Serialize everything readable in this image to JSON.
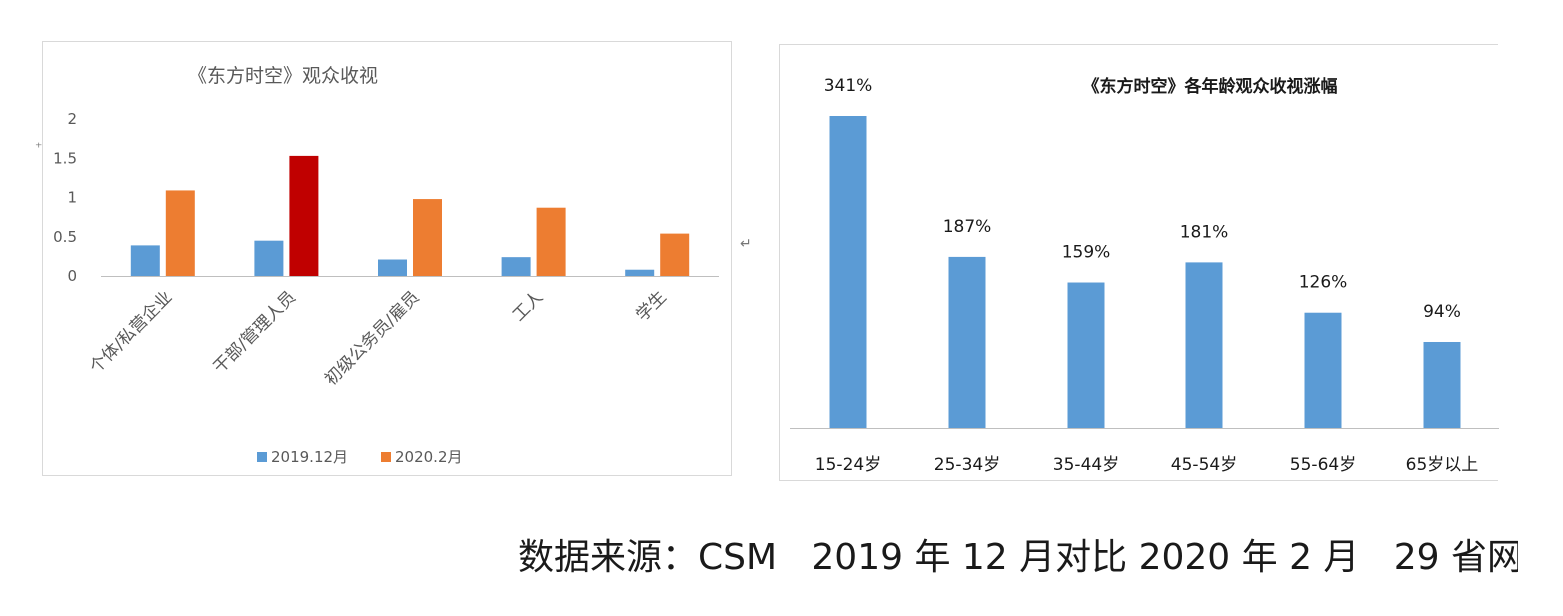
{
  "colors": {
    "series_2019": "#5b9bd5",
    "series_2020": "#ed7d31",
    "highlight": "#c00000",
    "axis": "#bfbfbf",
    "text": "#595959"
  },
  "footer": {
    "source": "数据来源：CSM   2019 年 12 月对比 2020 年 2 月   29 省网"
  },
  "marks": {
    "return_mark": "↵",
    "left_tick": "⁺"
  },
  "chart_data": [
    {
      "type": "bar",
      "title": "《东方时空》观众收视",
      "categories": [
        "个体/私营企业",
        "干部/管理人员",
        "初级公务员/雇员",
        "工人",
        "学生"
      ],
      "series": [
        {
          "name": "2019.12月",
          "values": [
            0.39,
            0.45,
            0.21,
            0.24,
            0.08
          ]
        },
        {
          "name": "2020.2月",
          "values": [
            1.09,
            1.53,
            0.98,
            0.87,
            0.54
          ]
        }
      ],
      "highlight": {
        "series": 1,
        "index": 1
      },
      "yticks": [
        "0",
        "0.5",
        "1",
        "1.5",
        "2"
      ],
      "ylim": [
        0,
        2
      ],
      "legend": "bottom",
      "grid": false
    },
    {
      "type": "bar",
      "title": "《东方时空》各年龄观众收视涨幅",
      "categories": [
        "15-24岁",
        "25-34岁",
        "35-44岁",
        "45-54岁",
        "55-64岁",
        "65岁以上"
      ],
      "values": [
        341,
        187,
        159,
        181,
        126,
        94
      ],
      "data_labels": [
        "341%",
        "187%",
        "159%",
        "181%",
        "126%",
        "94%"
      ],
      "unit": "%",
      "ylim": [
        0,
        341
      ],
      "grid": false
    }
  ]
}
